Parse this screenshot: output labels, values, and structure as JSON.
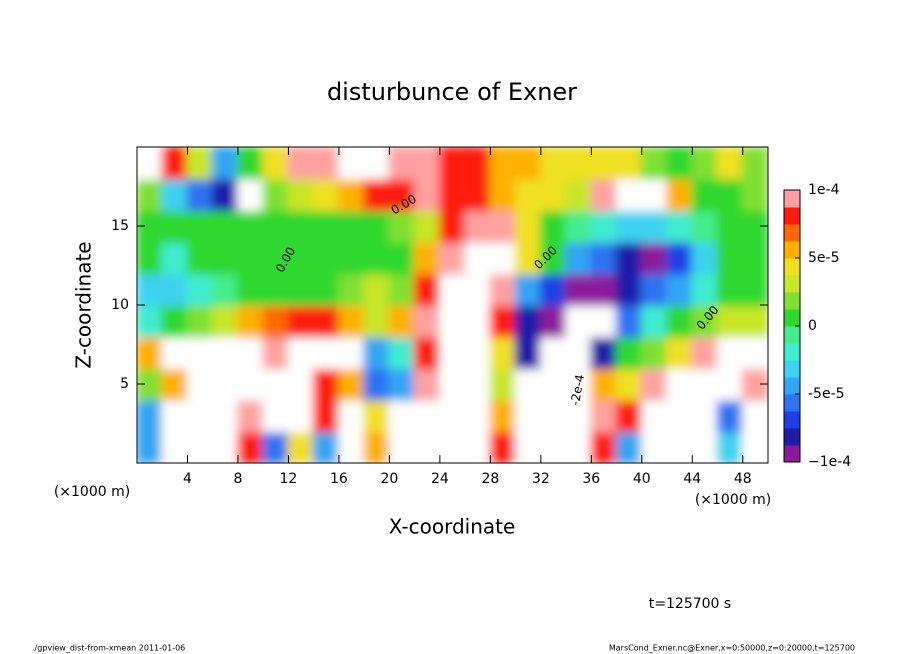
{
  "chart_data": {
    "type": "heatmap",
    "title": "disturbunce of Exner",
    "x_label": "X-coordinate",
    "y_label": "Z-coordinate",
    "x_unit_left": "(×1000 m)",
    "x_unit_right": "(×1000 m)",
    "time_label": "t=125700 s",
    "footer_left": "./gpview_dist-from-xmean  2011-01-06",
    "footer_right": "MarsCond_Exner.nc@Exner,x=0:50000,z=0:20000,t=125700",
    "contour_labels": [
      "0.00",
      "0.00",
      "0.00",
      "0.00",
      "-2e-4"
    ],
    "xlim": [
      0,
      50
    ],
    "ylim": [
      0,
      20
    ],
    "xticks": [
      4,
      8,
      12,
      16,
      20,
      24,
      28,
      32,
      36,
      40,
      44,
      48
    ],
    "yticks": [
      5,
      10,
      15
    ],
    "zlim": [
      -0.0001,
      0.0001
    ],
    "zticks": [
      {
        "value": 0.0001,
        "label": "1e-4"
      },
      {
        "value": 5e-05,
        "label": "5e-5"
      },
      0,
      {
        "value": -5e-05,
        "label": "-5e-5"
      },
      {
        "value": -0.0001,
        "label": "−1e-4"
      }
    ],
    "colorscale": [
      "#8b1a9b",
      "#1e1ea8",
      "#1f3fe6",
      "#2e72f2",
      "#32a4f4",
      "#3cd2f0",
      "#40ecd0",
      "#46ec8c",
      "#2fd82f",
      "#80e030",
      "#c8e628",
      "#f0e020",
      "#ffb000",
      "#ff6a00",
      "#ff1a10",
      "#ffa0a0"
    ],
    "out_of_range_color": "#ffffff",
    "x": [
      1,
      3,
      5,
      7,
      9,
      11,
      13,
      15,
      17,
      19,
      21,
      23,
      25,
      27,
      29,
      31,
      33,
      35,
      37,
      39,
      41,
      43,
      45,
      47,
      49
    ],
    "y": [
      1,
      3,
      5,
      7,
      9,
      11,
      13,
      15,
      17,
      19
    ],
    "z": [
      [
        -4e-05,
        0.00015,
        0.00015,
        0.00015,
        8e-05,
        -6e-05,
        4e-05,
        -5e-05,
        0.00015,
        6e-05,
        0.00015,
        0.00012,
        0.00015,
        0.00015,
        8e-05,
        0.00015,
        0.00015,
        0.00015,
        8e-05,
        -4e-05,
        0.00015,
        0.00015,
        0.00015,
        -3e-05,
        0.00015
      ],
      [
        -5e-05,
        0.00015,
        0.00015,
        0.00015,
        0.0001,
        0.00015,
        0.00015,
        8e-05,
        0.00015,
        4e-05,
        0.00015,
        0.00012,
        0.00015,
        0.00015,
        6e-05,
        -0.0002,
        -0.0002,
        0.00015,
        0.0001,
        8e-05,
        0.00012,
        0.00015,
        0.00015,
        -6e-05,
        0.00015
      ],
      [
        2e-05,
        6e-05,
        0.00015,
        0.00015,
        0.00015,
        0.00015,
        0.00015,
        8e-05,
        5e-05,
        -6e-05,
        -5e-05,
        0.0001,
        0.00015,
        0.00012,
        3e-05,
        -0.0002,
        -0.0002,
        0.00015,
        6e-05,
        4e-05,
        0.0001,
        0.00015,
        0.00015,
        0.00015,
        0.0001
      ],
      [
        6e-05,
        0.00012,
        0.00015,
        0.00015,
        0.00015,
        0.0001,
        0.00012,
        0.00015,
        0.00015,
        -4e-05,
        -2e-05,
        8e-05,
        0.00015,
        0.00015,
        4e-05,
        -8e-05,
        0.00015,
        0.00015,
        -8e-05,
        1e-05,
        2e-05,
        4e-05,
        0.0001,
        0.00015,
        0.00015
      ],
      [
        -2e-05,
        0,
        2e-05,
        3e-05,
        6e-05,
        7e-05,
        8e-05,
        8e-05,
        6e-05,
        3e-05,
        6e-05,
        0.0001,
        0.00015,
        0.00015,
        8e-05,
        -8e-05,
        -0.0001,
        -0.00012,
        -0.00011,
        -6e-05,
        -2e-05,
        0,
        2e-05,
        3e-05,
        3e-05
      ],
      [
        -3e-05,
        -3e-05,
        -2e-05,
        -1e-05,
        0,
        0,
        1e-05,
        1e-05,
        2e-05,
        3e-05,
        2e-05,
        8e-05,
        0.00015,
        0.00015,
        0.0001,
        -4e-05,
        -7e-05,
        -9e-05,
        -0.0001,
        -8e-05,
        -6e-05,
        -4e-05,
        -2e-05,
        0,
        0
      ],
      [
        0,
        -2e-05,
        0,
        0,
        0,
        1e-05,
        1e-05,
        0,
        0,
        0,
        1e-05,
        6e-05,
        0.0001,
        0.00015,
        0.00012,
        4e-05,
        0,
        -4e-05,
        -6e-05,
        -8e-05,
        -9e-05,
        -7e-05,
        -3e-05,
        0,
        0
      ],
      [
        0,
        0,
        1e-05,
        1e-05,
        0,
        0,
        0,
        0,
        0,
        1e-05,
        2e-05,
        3e-05,
        8e-05,
        0.0001,
        9e-05,
        4e-05,
        1e-05,
        -1e-05,
        -2e-05,
        -3e-05,
        -3e-05,
        -2e-05,
        -1e-05,
        0,
        0
      ],
      [
        2e-05,
        -3e-05,
        -6e-05,
        -8e-05,
        0.00015,
        2e-05,
        3e-05,
        4e-05,
        6e-05,
        8e-05,
        8e-05,
        9e-05,
        8e-05,
        8e-05,
        6e-05,
        4e-05,
        4e-05,
        3e-05,
        0.0001,
        0.00012,
        0.00012,
        6e-05,
        0,
        1e-05,
        2e-05
      ],
      [
        0.00015,
        8e-05,
        3e-05,
        -5e-05,
        0,
        4e-05,
        9e-05,
        0.0001,
        0.00012,
        0.00012,
        0.0001,
        0.0001,
        8e-05,
        8e-05,
        6e-05,
        6e-05,
        4e-05,
        4e-05,
        4e-05,
        4e-05,
        2e-05,
        0,
        2e-05,
        4e-05,
        2e-05
      ]
    ]
  }
}
